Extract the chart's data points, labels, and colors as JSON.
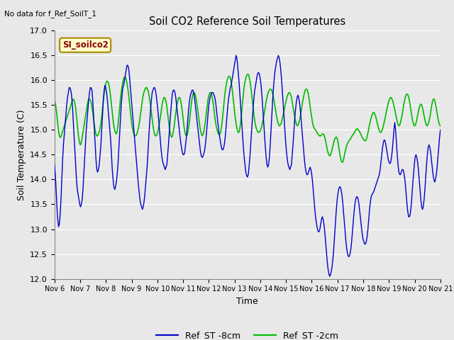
{
  "title": "Soil CO2 Reference Soil Temperatures",
  "top_left_text": "No data for f_Ref_SoilT_1",
  "site_label": "SI_soilco2",
  "xlabel": "Time",
  "ylabel": "Soil Temperature (C)",
  "ylim": [
    12.0,
    17.0
  ],
  "yticks": [
    12.0,
    12.5,
    13.0,
    13.5,
    14.0,
    14.5,
    15.0,
    15.5,
    16.0,
    16.5,
    17.0
  ],
  "bg_color": "#e8e8e8",
  "fig_color": "#e8e8e8",
  "blue_color": "#0000cc",
  "green_color": "#00bb00",
  "legend_blue": "Ref_ST -8cm",
  "legend_green": "Ref_ST -2cm",
  "x_tick_labels": [
    "Nov 6",
    "Nov 7",
    "Nov 8",
    "Nov 9",
    "Nov 10",
    "Nov 11",
    "Nov 12",
    "Nov 13",
    "Nov 14",
    "Nov 15",
    "Nov 16",
    "Nov 17",
    "Nov 18",
    "Nov 19",
    "Nov 20",
    "Nov 21"
  ],
  "blue_y": [
    14.3,
    14.1,
    13.8,
    13.45,
    13.2,
    13.05,
    13.1,
    13.3,
    13.6,
    14.0,
    14.4,
    14.7,
    14.9,
    15.1,
    15.3,
    15.5,
    15.65,
    15.75,
    15.85,
    15.85,
    15.8,
    15.7,
    15.5,
    15.2,
    14.9,
    14.6,
    14.3,
    14.0,
    13.8,
    13.7,
    13.6,
    13.5,
    13.45,
    13.5,
    13.6,
    13.8,
    14.1,
    14.4,
    14.7,
    15.0,
    15.2,
    15.4,
    15.6,
    15.75,
    15.85,
    15.85,
    15.8,
    15.6,
    15.3,
    15.0,
    14.7,
    14.4,
    14.2,
    14.15,
    14.2,
    14.3,
    14.5,
    14.7,
    15.0,
    15.3,
    15.6,
    15.8,
    15.9,
    15.85,
    15.75,
    15.6,
    15.4,
    15.2,
    15.0,
    14.8,
    14.5,
    14.2,
    14.0,
    13.85,
    13.8,
    13.85,
    13.95,
    14.1,
    14.3,
    14.6,
    14.9,
    15.2,
    15.5,
    15.7,
    15.85,
    15.9,
    16.0,
    16.1,
    16.2,
    16.3,
    16.3,
    16.25,
    16.1,
    15.9,
    15.7,
    15.5,
    15.3,
    15.1,
    14.9,
    14.7,
    14.5,
    14.3,
    14.1,
    13.9,
    13.75,
    13.6,
    13.5,
    13.45,
    13.4,
    13.45,
    13.55,
    13.7,
    13.9,
    14.1,
    14.3,
    14.6,
    14.9,
    15.15,
    15.4,
    15.6,
    15.75,
    15.8,
    15.85,
    15.85,
    15.8,
    15.7,
    15.55,
    15.4,
    15.2,
    15.0,
    14.8,
    14.6,
    14.45,
    14.35,
    14.3,
    14.25,
    14.2,
    14.25,
    14.3,
    14.5,
    14.7,
    14.95,
    15.2,
    15.4,
    15.6,
    15.75,
    15.8,
    15.8,
    15.75,
    15.65,
    15.5,
    15.35,
    15.2,
    15.05,
    14.9,
    14.75,
    14.65,
    14.55,
    14.5,
    14.5,
    14.55,
    14.7,
    14.85,
    15.05,
    15.25,
    15.45,
    15.6,
    15.7,
    15.75,
    15.8,
    15.8,
    15.75,
    15.65,
    15.5,
    15.35,
    15.2,
    15.05,
    14.9,
    14.75,
    14.6,
    14.5,
    14.45,
    14.45,
    14.5,
    14.55,
    14.65,
    14.8,
    15.0,
    15.2,
    15.4,
    15.55,
    15.65,
    15.7,
    15.75,
    15.75,
    15.75,
    15.7,
    15.65,
    15.55,
    15.4,
    15.25,
    15.1,
    14.95,
    14.85,
    14.75,
    14.65,
    14.6,
    14.6,
    14.65,
    14.75,
    14.9,
    15.1,
    15.3,
    15.5,
    15.65,
    15.75,
    15.85,
    15.9,
    16.0,
    16.1,
    16.2,
    16.3,
    16.4,
    16.5,
    16.45,
    16.3,
    16.1,
    15.9,
    15.65,
    15.4,
    15.15,
    14.9,
    14.65,
    14.45,
    14.3,
    14.15,
    14.08,
    14.05,
    14.1,
    14.25,
    14.45,
    14.7,
    14.95,
    15.2,
    15.45,
    15.65,
    15.8,
    15.9,
    16.0,
    16.1,
    16.15,
    16.15,
    16.1,
    16.0,
    15.85,
    15.65,
    15.4,
    15.15,
    14.9,
    14.65,
    14.45,
    14.3,
    14.25,
    14.3,
    14.45,
    14.7,
    15.0,
    15.3,
    15.6,
    15.85,
    16.05,
    16.2,
    16.3,
    16.4,
    16.45,
    16.5,
    16.45,
    16.35,
    16.2,
    16.0,
    15.75,
    15.5,
    15.25,
    15.0,
    14.75,
    14.55,
    14.4,
    14.3,
    14.25,
    14.2,
    14.25,
    14.3,
    14.5,
    14.7,
    14.95,
    15.2,
    15.4,
    15.55,
    15.65,
    15.7,
    15.65,
    15.55,
    15.4,
    15.2,
    15.0,
    14.8,
    14.6,
    14.4,
    14.25,
    14.15,
    14.1,
    14.1,
    14.15,
    14.2,
    14.25,
    14.2,
    14.1,
    13.95,
    13.75,
    13.55,
    13.35,
    13.2,
    13.1,
    13.0,
    12.95,
    12.95,
    13.0,
    13.1,
    13.2,
    13.25,
    13.2,
    13.1,
    12.95,
    12.75,
    12.55,
    12.35,
    12.2,
    12.1,
    12.05,
    12.08,
    12.15,
    12.25,
    12.4,
    12.6,
    12.85,
    13.1,
    13.35,
    13.55,
    13.7,
    13.8,
    13.85,
    13.85,
    13.8,
    13.7,
    13.55,
    13.35,
    13.15,
    12.95,
    12.75,
    12.6,
    12.5,
    12.45,
    12.45,
    12.5,
    12.6,
    12.75,
    12.95,
    13.15,
    13.35,
    13.5,
    13.6,
    13.65,
    13.65,
    13.6,
    13.5,
    13.35,
    13.2,
    13.05,
    12.9,
    12.8,
    12.75,
    12.7,
    12.7,
    12.75,
    12.85,
    13.0,
    13.2,
    13.4,
    13.55,
    13.65,
    13.7,
    13.72,
    13.75,
    13.8,
    13.85,
    13.9,
    13.95,
    14.0,
    14.05,
    14.1,
    14.2,
    14.35,
    14.5,
    14.65,
    14.75,
    14.8,
    14.78,
    14.7,
    14.6,
    14.5,
    14.4,
    14.35,
    14.32,
    14.35,
    14.45,
    14.6,
    14.8,
    15.0,
    15.15,
    15.0,
    14.75,
    14.5,
    14.3,
    14.15,
    14.1,
    14.1,
    14.15,
    14.2,
    14.2,
    14.15,
    14.05,
    13.9,
    13.7,
    13.5,
    13.35,
    13.25,
    13.25,
    13.3,
    13.45,
    13.65,
    13.9,
    14.1,
    14.3,
    14.45,
    14.5,
    14.45,
    14.35,
    14.2,
    14.0,
    13.8,
    13.6,
    13.45,
    13.4,
    13.45,
    13.6,
    13.8,
    14.05,
    14.3,
    14.5,
    14.65,
    14.7,
    14.65,
    14.55,
    14.4,
    14.25,
    14.1,
    14.0,
    13.95,
    14.0,
    14.1,
    14.25,
    14.45,
    14.65,
    14.85,
    15.0
  ],
  "green_y": [
    15.6,
    15.55,
    15.45,
    15.3,
    15.15,
    15.0,
    14.9,
    14.85,
    14.85,
    14.9,
    14.95,
    15.0,
    15.05,
    15.1,
    15.15,
    15.2,
    15.25,
    15.3,
    15.35,
    15.4,
    15.45,
    15.5,
    15.55,
    15.6,
    15.62,
    15.6,
    15.55,
    15.45,
    15.3,
    15.15,
    14.98,
    14.85,
    14.75,
    14.7,
    14.72,
    14.8,
    14.9,
    15.0,
    15.1,
    15.2,
    15.3,
    15.4,
    15.5,
    15.58,
    15.62,
    15.62,
    15.6,
    15.55,
    15.45,
    15.35,
    15.22,
    15.1,
    15.0,
    14.92,
    14.88,
    14.88,
    14.9,
    14.95,
    15.0,
    15.1,
    15.2,
    15.35,
    15.5,
    15.65,
    15.78,
    15.88,
    15.95,
    15.98,
    15.98,
    15.95,
    15.88,
    15.78,
    15.65,
    15.5,
    15.35,
    15.2,
    15.08,
    15.0,
    14.95,
    14.92,
    14.95,
    15.05,
    15.2,
    15.38,
    15.55,
    15.7,
    15.82,
    15.92,
    16.0,
    16.05,
    16.07,
    16.05,
    16.0,
    15.92,
    15.82,
    15.7,
    15.55,
    15.4,
    15.25,
    15.12,
    15.02,
    14.95,
    14.9,
    14.88,
    14.88,
    14.9,
    14.95,
    15.0,
    15.08,
    15.18,
    15.3,
    15.42,
    15.55,
    15.65,
    15.73,
    15.78,
    15.82,
    15.85,
    15.85,
    15.82,
    15.78,
    15.7,
    15.6,
    15.48,
    15.35,
    15.22,
    15.1,
    15.0,
    14.92,
    14.88,
    14.88,
    14.9,
    14.95,
    15.02,
    15.1,
    15.2,
    15.3,
    15.42,
    15.52,
    15.6,
    15.65,
    15.65,
    15.62,
    15.55,
    15.45,
    15.32,
    15.18,
    15.05,
    14.95,
    14.88,
    14.85,
    14.88,
    14.95,
    15.05,
    15.18,
    15.3,
    15.42,
    15.52,
    15.6,
    15.65,
    15.65,
    15.62,
    15.55,
    15.45,
    15.32,
    15.18,
    15.05,
    14.95,
    14.9,
    14.88,
    14.9,
    14.98,
    15.08,
    15.2,
    15.35,
    15.5,
    15.62,
    15.7,
    15.75,
    15.75,
    15.72,
    15.65,
    15.55,
    15.45,
    15.32,
    15.2,
    15.08,
    14.98,
    14.92,
    14.88,
    14.9,
    14.95,
    15.05,
    15.15,
    15.28,
    15.42,
    15.55,
    15.65,
    15.72,
    15.75,
    15.75,
    15.72,
    15.65,
    15.55,
    15.42,
    15.3,
    15.18,
    15.08,
    15.0,
    14.95,
    14.92,
    14.9,
    14.92,
    14.98,
    15.08,
    15.22,
    15.38,
    15.55,
    15.7,
    15.82,
    15.92,
    16.0,
    16.05,
    16.08,
    16.08,
    16.05,
    15.98,
    15.88,
    15.75,
    15.6,
    15.45,
    15.3,
    15.18,
    15.08,
    15.0,
    14.95,
    14.95,
    15.0,
    15.1,
    15.25,
    15.42,
    15.6,
    15.75,
    15.88,
    15.98,
    16.05,
    16.1,
    16.12,
    16.12,
    16.08,
    16.0,
    15.9,
    15.78,
    15.62,
    15.48,
    15.35,
    15.22,
    15.12,
    15.05,
    15.0,
    14.97,
    14.95,
    14.95,
    14.97,
    15.0,
    15.05,
    15.12,
    15.2,
    15.28,
    15.38,
    15.48,
    15.58,
    15.65,
    15.72,
    15.77,
    15.8,
    15.82,
    15.82,
    15.8,
    15.75,
    15.68,
    15.6,
    15.5,
    15.4,
    15.3,
    15.22,
    15.15,
    15.1,
    15.08,
    15.1,
    15.12,
    15.18,
    15.25,
    15.32,
    15.4,
    15.48,
    15.55,
    15.62,
    15.68,
    15.72,
    15.75,
    15.75,
    15.72,
    15.68,
    15.6,
    15.5,
    15.4,
    15.3,
    15.22,
    15.15,
    15.1,
    15.08,
    15.1,
    15.15,
    15.22,
    15.3,
    15.4,
    15.5,
    15.6,
    15.68,
    15.75,
    15.8,
    15.82,
    15.82,
    15.78,
    15.72,
    15.62,
    15.5,
    15.38,
    15.28,
    15.18,
    15.1,
    15.05,
    15.02,
    15.0,
    14.98,
    14.95,
    14.92,
    14.9,
    14.88,
    14.88,
    14.88,
    14.9,
    14.92,
    14.92,
    14.9,
    14.85,
    14.78,
    14.7,
    14.62,
    14.55,
    14.5,
    14.48,
    14.48,
    14.52,
    14.58,
    14.65,
    14.72,
    14.78,
    14.82,
    14.85,
    14.85,
    14.82,
    14.75,
    14.65,
    14.55,
    14.45,
    14.38,
    14.35,
    14.35,
    14.4,
    14.48,
    14.55,
    14.62,
    14.68,
    14.72,
    14.75,
    14.78,
    14.8,
    14.82,
    14.85,
    14.88,
    14.9,
    14.92,
    14.95,
    14.98,
    15.0,
    15.02,
    15.02,
    15.0,
    14.98,
    14.95,
    14.92,
    14.88,
    14.85,
    14.82,
    14.8,
    14.78,
    14.78,
    14.8,
    14.85,
    14.92,
    15.0,
    15.08,
    15.15,
    15.22,
    15.28,
    15.32,
    15.35,
    15.35,
    15.32,
    15.28,
    15.22,
    15.15,
    15.08,
    15.02,
    14.98,
    14.95,
    14.95,
    14.98,
    15.02,
    15.08,
    15.15,
    15.22,
    15.3,
    15.38,
    15.45,
    15.52,
    15.58,
    15.62,
    15.65,
    15.65,
    15.62,
    15.58,
    15.52,
    15.45,
    15.38,
    15.3,
    15.22,
    15.15,
    15.1,
    15.08,
    15.1,
    15.15,
    15.22,
    15.3,
    15.4,
    15.5,
    15.58,
    15.65,
    15.7,
    15.72,
    15.72,
    15.68,
    15.62,
    15.52,
    15.42,
    15.32,
    15.22,
    15.15,
    15.1,
    15.08,
    15.1,
    15.15,
    15.22,
    15.3,
    15.38,
    15.45,
    15.5,
    15.52,
    15.5,
    15.45,
    15.38,
    15.3,
    15.22,
    15.15,
    15.1,
    15.08,
    15.1,
    15.15,
    15.22,
    15.3,
    15.4,
    15.5,
    15.58,
    15.62,
    15.62,
    15.58,
    15.5,
    15.42,
    15.32,
    15.22,
    15.15,
    15.1,
    15.08
  ]
}
